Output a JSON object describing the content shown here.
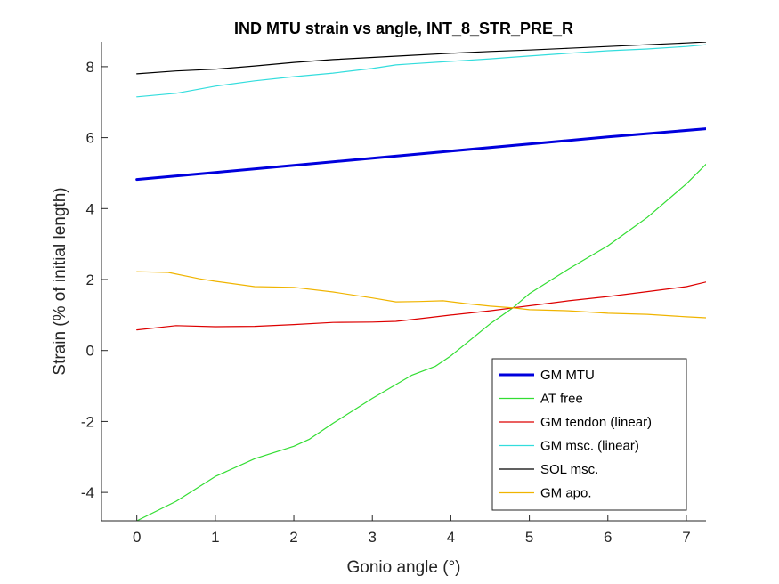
{
  "chart_data": {
    "type": "line",
    "title": "IND MTU strain vs angle, INT_8_STR_PRE_R",
    "xlabel": "Gonio angle (°)",
    "ylabel": "Strain (% of initial length)",
    "xlim": [
      -0.45,
      7.25
    ],
    "ylim": [
      -4.8,
      8.7
    ],
    "xticks": [
      0,
      1,
      2,
      3,
      4,
      5,
      6,
      7
    ],
    "yticks": [
      -4,
      -2,
      0,
      2,
      4,
      6,
      8
    ],
    "xtick_labels": [
      "0",
      "1",
      "2",
      "3",
      "4",
      "5",
      "6",
      "7"
    ],
    "ytick_labels": [
      "-4",
      "-2",
      "0",
      "2",
      "4",
      "6",
      "8"
    ],
    "grid": false,
    "legend_position": "bottom-right",
    "series": [
      {
        "name": "GM MTU",
        "color": "#0000dd",
        "width": 3,
        "x": [
          0,
          1,
          2,
          3,
          4,
          5,
          6,
          7.25
        ],
        "y": [
          4.82,
          5.02,
          5.22,
          5.42,
          5.62,
          5.82,
          6.02,
          6.25
        ]
      },
      {
        "name": "AT free",
        "color": "#33dd33",
        "width": 1.2,
        "x": [
          0,
          0.5,
          1,
          1.5,
          2,
          2.2,
          2.5,
          3,
          3.5,
          3.8,
          4,
          4.5,
          4.8,
          5,
          5.5,
          6,
          6.5,
          7,
          7.25
        ],
        "y": [
          -4.8,
          -4.25,
          -3.55,
          -3.05,
          -2.7,
          -2.5,
          -2.05,
          -1.35,
          -0.7,
          -0.45,
          -0.15,
          0.75,
          1.22,
          1.6,
          2.3,
          2.95,
          3.75,
          4.7,
          5.25
        ]
      },
      {
        "name": "GM tendon (linear)",
        "color": "#dd0000",
        "width": 1.2,
        "x": [
          0,
          0.5,
          1,
          1.5,
          2,
          2.5,
          3,
          3.3,
          3.7,
          4,
          4.5,
          5,
          5.5,
          6,
          6.5,
          7,
          7.25
        ],
        "y": [
          0.58,
          0.7,
          0.67,
          0.68,
          0.73,
          0.79,
          0.8,
          0.82,
          0.92,
          1.0,
          1.12,
          1.26,
          1.4,
          1.52,
          1.66,
          1.8,
          1.93
        ]
      },
      {
        "name": "GM msc. (linear)",
        "color": "#33dddd",
        "width": 1.2,
        "x": [
          0,
          0.5,
          1,
          1.5,
          2,
          2.5,
          3,
          3.3,
          3.5,
          4,
          4.5,
          5,
          5.5,
          6,
          6.5,
          7,
          7.25
        ],
        "y": [
          7.15,
          7.25,
          7.45,
          7.6,
          7.72,
          7.82,
          7.95,
          8.05,
          8.08,
          8.15,
          8.22,
          8.3,
          8.38,
          8.45,
          8.5,
          8.57,
          8.62
        ]
      },
      {
        "name": "SOL msc.",
        "color": "#000000",
        "width": 1.2,
        "x": [
          0,
          0.5,
          1,
          1.5,
          2,
          2.5,
          3,
          3.5,
          4,
          4.5,
          5,
          5.5,
          6,
          6.5,
          7,
          7.25
        ],
        "y": [
          7.8,
          7.88,
          7.93,
          8.02,
          8.12,
          8.2,
          8.26,
          8.32,
          8.38,
          8.43,
          8.47,
          8.52,
          8.57,
          8.62,
          8.67,
          8.7
        ]
      },
      {
        "name": "GM apo.",
        "color": "#f0b400",
        "width": 1.2,
        "x": [
          0,
          0.4,
          0.8,
          1.0,
          1.5,
          2.0,
          2.5,
          3.0,
          3.3,
          3.6,
          3.9,
          4.2,
          4.5,
          4.8,
          5.0,
          5.5,
          6.0,
          6.5,
          7.0,
          7.25
        ],
        "y": [
          2.22,
          2.2,
          2.02,
          1.95,
          1.8,
          1.78,
          1.65,
          1.48,
          1.37,
          1.38,
          1.4,
          1.32,
          1.25,
          1.2,
          1.15,
          1.12,
          1.05,
          1.02,
          0.95,
          0.92
        ]
      }
    ]
  }
}
